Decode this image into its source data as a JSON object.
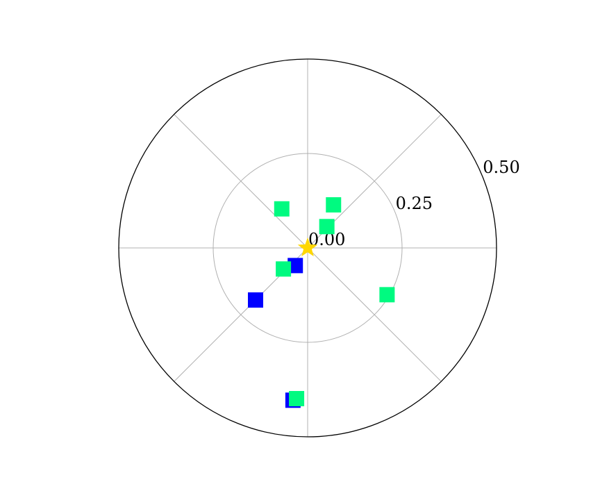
{
  "chart_data": {
    "type": "scatter",
    "projection": "polar",
    "title": "",
    "xlabel": "",
    "ylabel": "",
    "theta_zero": "east",
    "theta_direction": "counterclockwise",
    "rlim": [
      0,
      0.5
    ],
    "r_ticks": [
      {
        "value": 0.0,
        "label": "0.00"
      },
      {
        "value": 0.25,
        "label": "0.25"
      },
      {
        "value": 0.5,
        "label": "0.50"
      }
    ],
    "theta_grid_deg": [
      0,
      45,
      90,
      135,
      180,
      225,
      270,
      315
    ],
    "grid": true,
    "legend": "none",
    "center_marker": {
      "shape": "star",
      "color": "#ffd700",
      "r": 0,
      "theta_deg": 0
    },
    "series": [
      {
        "color": "#0000ff",
        "marker": "square",
        "points": [
          {
            "r": 0.057,
            "theta_deg": 235
          },
          {
            "r": 0.195,
            "theta_deg": 225
          },
          {
            "r": 0.405,
            "theta_deg": 264.5
          }
        ]
      },
      {
        "color": "#00fa80",
        "marker": "square",
        "points": [
          {
            "r": 0.133,
            "theta_deg": 59
          },
          {
            "r": 0.076,
            "theta_deg": 48
          },
          {
            "r": 0.124,
            "theta_deg": 123.5
          },
          {
            "r": 0.085,
            "theta_deg": 221
          },
          {
            "r": 0.244,
            "theta_deg": 329.5
          },
          {
            "r": 0.4,
            "theta_deg": 265.8
          }
        ]
      }
    ]
  }
}
